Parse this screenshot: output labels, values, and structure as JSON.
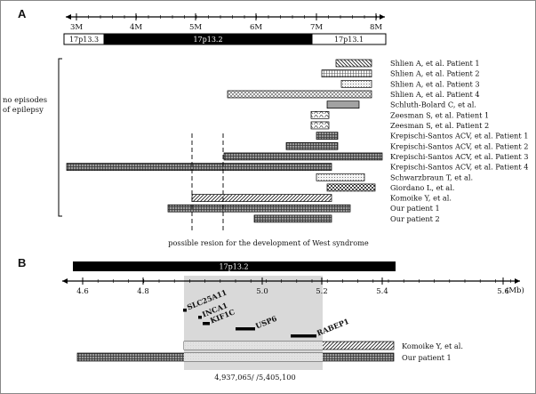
{
  "panel_a": {
    "label": "A",
    "ticks": [
      "3M",
      "4M",
      "5M",
      "6M",
      "7M",
      "8M"
    ],
    "bands": [
      {
        "label": "17p13.3",
        "fill": "#ffffff",
        "text_color": "#111111"
      },
      {
        "label": "17p13.2",
        "fill": "#000000",
        "text_color": "#ffffff"
      },
      {
        "label": "17p13.1",
        "fill": "#ffffff",
        "text_color": "#111111"
      }
    ],
    "side_note_lines": [
      "no episodes",
      "of epilepsy"
    ],
    "cases": [
      {
        "label": "Shlien A, et al. Patient 1",
        "pattern": "hatch-back"
      },
      {
        "label": "Shlien A, et al. Patient 2",
        "pattern": "grid"
      },
      {
        "label": "Shlien A, et al. Patient 3",
        "pattern": "dots-fine"
      },
      {
        "label": "Shlien A, et al. Patient 4",
        "pattern": "cross"
      },
      {
        "label": "Schluth-Bolard C, et al.",
        "pattern": "dots-dense"
      },
      {
        "label": "Zeesman S, et al. Patient 1",
        "pattern": "weave"
      },
      {
        "label": "Zeesman S, et al. Patient 2",
        "pattern": "weave"
      },
      {
        "label": "Krepischi-Santos ACV, et al. Patient 1",
        "pattern": "grid-dark"
      },
      {
        "label": "Krepischi-Santos ACV, et al. Patient 2",
        "pattern": "grid-dark"
      },
      {
        "label": "Krepischi-Santos ACV, et al. Patient 3",
        "pattern": "grid-dark"
      },
      {
        "label": "Krepischi-Santos ACV, et al. Patient 4",
        "pattern": "grid-dark"
      },
      {
        "label": "Schwarzbraun T, et al.",
        "pattern": "dots-fine"
      },
      {
        "label": "Giordano L, et al.",
        "pattern": "checker"
      },
      {
        "label": "Komoike Y, et al.",
        "pattern": "hatch-fwd"
      },
      {
        "label": "Our patient 1",
        "pattern": "grid-dark"
      },
      {
        "label": "Our patient 2",
        "pattern": "grid-dark"
      }
    ],
    "region_caption": "possible resion for the development of West syndrome"
  },
  "panel_b": {
    "label": "B",
    "band_label": "17p13.2",
    "ticks": [
      "4.6",
      "4.8",
      "5.0",
      "5.2",
      "5.4",
      "5.6"
    ],
    "unit": "(Mb)",
    "genes": [
      "SLC25A11",
      "INCA1",
      "KIF1C",
      "USP6",
      "RABEP1"
    ],
    "tracks": [
      {
        "label": "Komoike Y, et al.",
        "pattern": "hatch-fwd"
      },
      {
        "label": "Our patient 1",
        "pattern": "grid-dark"
      }
    ],
    "breakpoint_caption": "4,937,065/ /5,405,100",
    "shading_color": "#d9d9d9"
  }
}
